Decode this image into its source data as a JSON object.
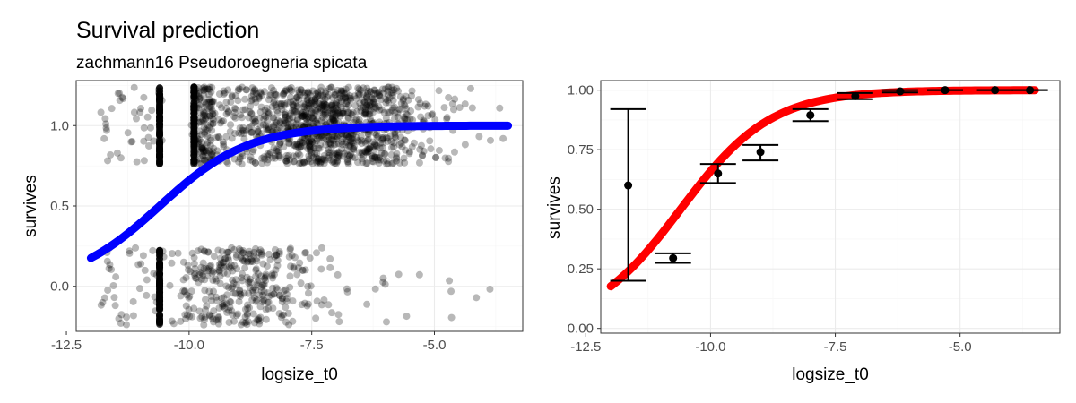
{
  "title": "Survival prediction",
  "subtitle": "zachmann16 Pseudoroegneria spicata",
  "colors": {
    "left_curve": "#0000ff",
    "right_curve": "#ff0000",
    "points": "#000000"
  },
  "chart_data": [
    {
      "type": "scatter",
      "xlabel": "logsize_t0",
      "ylabel": "survives",
      "xlim": [
        -12.3,
        -3.2
      ],
      "ylim": [
        -0.28,
        1.28
      ],
      "xticks": [
        -12.5,
        -10.0,
        -7.5,
        -5.0
      ],
      "xtick_labels": [
        "-12.5",
        "-10.0",
        "-7.5",
        "-5.0"
      ],
      "yticks": [
        0.0,
        0.5,
        1.0
      ],
      "ytick_labels": [
        "0.0",
        "0.5",
        "1.0"
      ],
      "grid": true,
      "points": "jittered individual observations (survives 0/1, jittered ±0.25), dense vertical stacks at logsize_t0 ≈ -10.6 and ≈ -9.9",
      "fit_line": {
        "color": "blue",
        "model": "logistic",
        "x_range": [
          -12.0,
          -3.5
        ],
        "x50": -10.6,
        "slope": 1.1
      }
    },
    {
      "type": "line",
      "xlabel": "logsize_t0",
      "ylabel": "survives",
      "xlim": [
        -12.2,
        -3.0
      ],
      "ylim": [
        -0.02,
        1.04
      ],
      "xticks": [
        -12.5,
        -10.0,
        -7.5,
        -5.0
      ],
      "xtick_labels": [
        "-12.5",
        "-10.0",
        "-7.5",
        "-5.0"
      ],
      "yticks": [
        0.0,
        0.25,
        0.5,
        0.75,
        1.0
      ],
      "ytick_labels": [
        "0.00",
        "0.25",
        "0.50",
        "0.75",
        "1.00"
      ],
      "grid": true,
      "fit_line": {
        "color": "red",
        "model": "logistic",
        "x_range": [
          -12.0,
          -3.5
        ],
        "x50": -10.6,
        "slope": 1.1
      },
      "binned_points": [
        {
          "x": -11.65,
          "y": 0.6,
          "lo": 0.2,
          "hi": 0.92
        },
        {
          "x": -10.75,
          "y": 0.295,
          "lo": 0.275,
          "hi": 0.315
        },
        {
          "x": -9.85,
          "y": 0.65,
          "lo": 0.61,
          "hi": 0.69
        },
        {
          "x": -9.0,
          "y": 0.74,
          "lo": 0.705,
          "hi": 0.77
        },
        {
          "x": -8.0,
          "y": 0.895,
          "lo": 0.87,
          "hi": 0.92
        },
        {
          "x": -7.1,
          "y": 0.975,
          "lo": 0.962,
          "hi": 0.988
        },
        {
          "x": -6.2,
          "y": 0.995,
          "lo": 0.99,
          "hi": 1.0
        },
        {
          "x": -5.3,
          "y": 1.0,
          "lo": 1.0,
          "hi": 1.0
        },
        {
          "x": -4.3,
          "y": 1.0,
          "lo": 1.0,
          "hi": 1.0
        },
        {
          "x": -3.6,
          "y": 1.0,
          "lo": 1.0,
          "hi": 1.0
        }
      ]
    }
  ]
}
